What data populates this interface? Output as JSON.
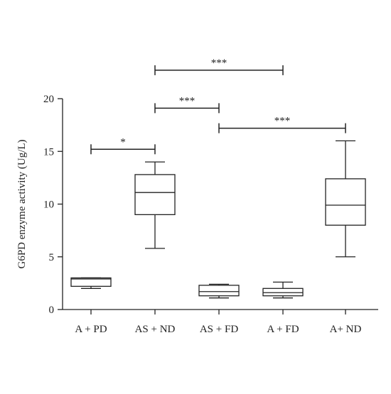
{
  "chart_data": {
    "type": "boxplot",
    "ylabel": "G6PD enzyme activity (Ug/L)",
    "xlabel": "",
    "ylim": [
      0,
      20
    ],
    "yticks": [
      0,
      5,
      10,
      15,
      20
    ],
    "categories": [
      "A + PD",
      "AS + ND",
      "AS + FD",
      "A + FD",
      "A+ ND"
    ],
    "boxes": [
      {
        "category": "A + PD",
        "min": 2.0,
        "q1": 2.2,
        "median": 2.9,
        "q3": 3.0,
        "max": 3.0
      },
      {
        "category": "AS + ND",
        "min": 5.8,
        "q1": 9.0,
        "median": 11.1,
        "q3": 12.8,
        "max": 14.0
      },
      {
        "category": "AS + FD",
        "min": 1.1,
        "q1": 1.3,
        "median": 1.7,
        "q3": 2.3,
        "max": 2.4
      },
      {
        "category": "A + FD",
        "min": 1.1,
        "q1": 1.3,
        "median": 1.6,
        "q3": 2.0,
        "max": 2.6
      },
      {
        "category": "A+ ND",
        "min": 5.0,
        "q1": 8.0,
        "median": 9.9,
        "q3": 12.4,
        "max": 16.0
      }
    ],
    "significance": [
      {
        "from": "A + PD",
        "to": "AS + ND",
        "label": "*",
        "level": 15.2
      },
      {
        "from": "AS + FD",
        "to": "A+ ND",
        "label": "***",
        "level": 17.2
      },
      {
        "from": "AS + ND",
        "to": "AS + FD",
        "label": "***",
        "level": 19.1
      },
      {
        "from": "AS + ND",
        "to": "A + FD",
        "label": "***",
        "level": 22.7
      }
    ]
  }
}
